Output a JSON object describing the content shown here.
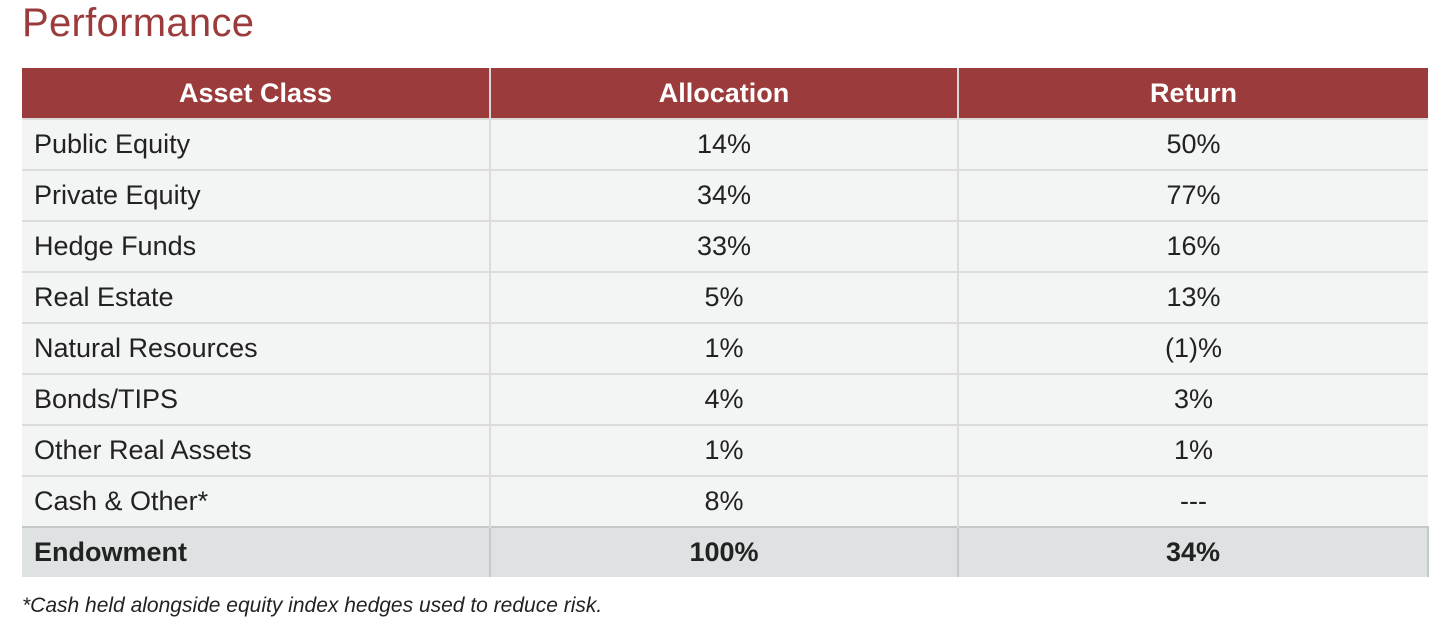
{
  "title": "Performance",
  "table": {
    "headers": [
      "Asset Class",
      "Allocation",
      "Return"
    ],
    "rows": [
      {
        "asset_class": "Public Equity",
        "allocation": "14%",
        "return": "50%"
      },
      {
        "asset_class": "Private Equity",
        "allocation": "34%",
        "return": "77%"
      },
      {
        "asset_class": "Hedge Funds",
        "allocation": "33%",
        "return": "16%"
      },
      {
        "asset_class": "Real Estate",
        "allocation": "5%",
        "return": "13%"
      },
      {
        "asset_class": "Natural Resources",
        "allocation": "1%",
        "return": "(1)%"
      },
      {
        "asset_class": "Bonds/TIPS",
        "allocation": "4%",
        "return": "3%"
      },
      {
        "asset_class": "Other Real Assets",
        "allocation": "1%",
        "return": "1%"
      },
      {
        "asset_class": "Cash & Other*",
        "allocation": "8%",
        "return": "---"
      }
    ],
    "total": {
      "asset_class": "Endowment",
      "allocation": "100%",
      "return": "34%"
    }
  },
  "footnote": "*Cash held alongside equity index hedges used to reduce risk.",
  "colors": {
    "accent": "#9b3b3b",
    "row_background": "#f3f4f4",
    "total_background": "#dfe2e2"
  }
}
